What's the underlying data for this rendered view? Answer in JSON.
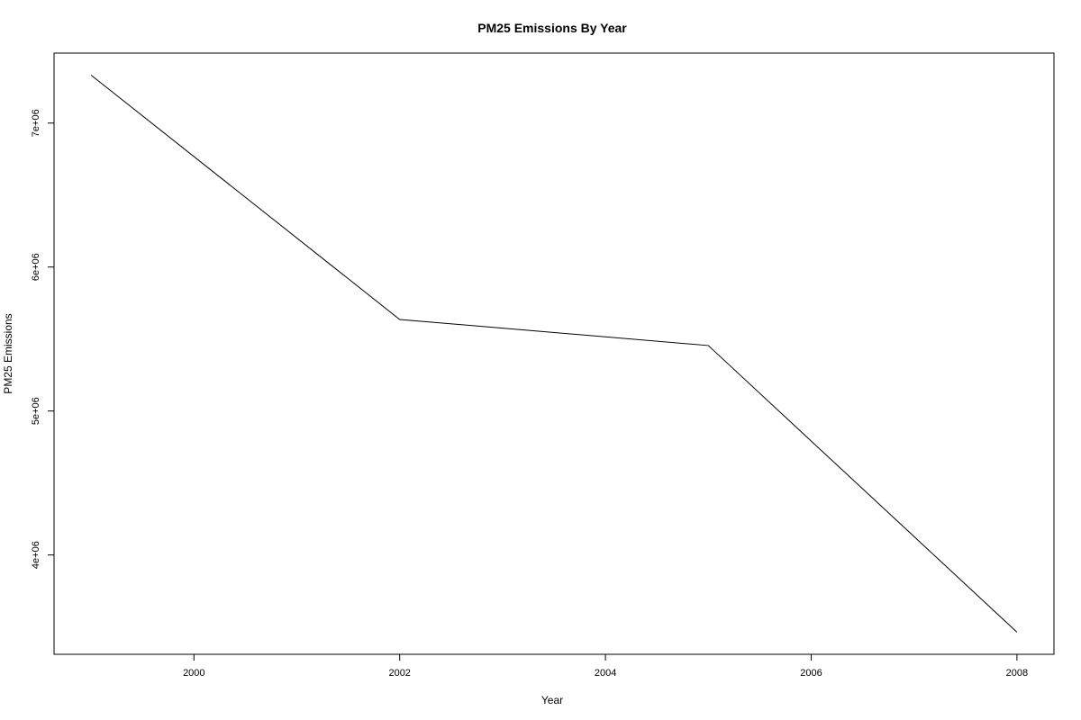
{
  "chart_data": {
    "type": "line",
    "title": "PM25 Emissions By Year",
    "xlabel": "Year",
    "ylabel": "PM25 Emissions",
    "x": [
      1999,
      2002,
      2005,
      2008
    ],
    "series": [
      {
        "values": [
          7332967,
          5635780,
          5454703,
          3464206
        ]
      }
    ],
    "xlim": [
      1998.64,
      2008.36
    ],
    "ylim": [
      3310000,
      7486000
    ],
    "xticks": [
      2000,
      2002,
      2004,
      2006,
      2008
    ],
    "xtick_labels": [
      "2000",
      "2002",
      "2004",
      "2006",
      "2008"
    ],
    "yticks": [
      4000000,
      5000000,
      6000000,
      7000000
    ],
    "ytick_labels": [
      "4e+06",
      "5e+06",
      "6e+06",
      "7e+06"
    ],
    "grid": false,
    "line_color": "#000000"
  }
}
